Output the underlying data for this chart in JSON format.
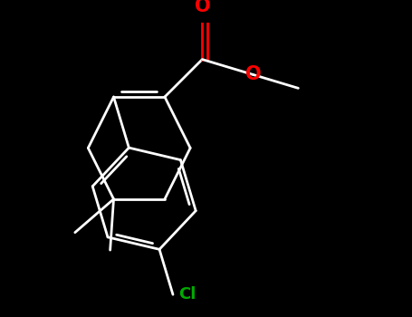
{
  "background_color": "#000000",
  "bond_color": "#ffffff",
  "O_color": "#ff0000",
  "Cl_color": "#00aa00",
  "line_width": 2.0,
  "font_size_O": 15,
  "font_size_Cl": 13,
  "figsize": [
    4.55,
    3.5
  ],
  "dpi": 100,
  "xlim": [
    -3.5,
    4.5
  ],
  "ylim": [
    -4.0,
    3.5
  ]
}
